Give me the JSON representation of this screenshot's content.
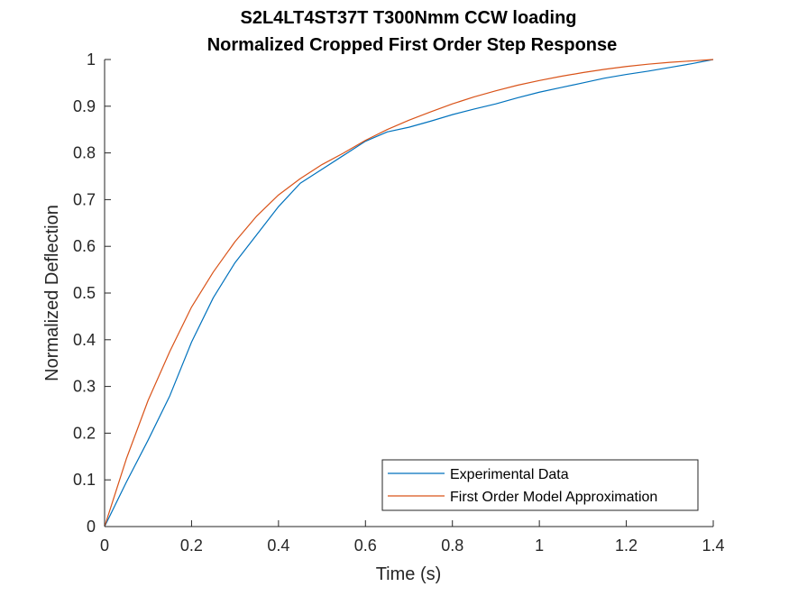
{
  "chart_data": {
    "type": "line",
    "title": [
      "S2L4LT4ST37T T300Nmm CCW loading",
      "Normalized Cropped First Order Step Response"
    ],
    "xlabel": "Time (s)",
    "ylabel": "Normalized Deflection",
    "xlim": [
      0,
      1.4
    ],
    "ylim": [
      0,
      1
    ],
    "xticks": [
      0,
      0.2,
      0.4,
      0.6,
      0.8,
      1,
      1.2,
      1.4
    ],
    "xtick_labels": [
      "0",
      "0.2",
      "0.4",
      "0.6",
      "0.8",
      "1",
      "1.2",
      "1.4"
    ],
    "yticks": [
      0,
      0.1,
      0.2,
      0.3,
      0.4,
      0.5,
      0.6,
      0.7,
      0.8,
      0.9,
      1
    ],
    "ytick_labels": [
      "0",
      "0.1",
      "0.2",
      "0.3",
      "0.4",
      "0.5",
      "0.6",
      "0.7",
      "0.8",
      "0.9",
      "1"
    ],
    "grid": false,
    "legend_position": "bottom-right",
    "series": [
      {
        "name": "Experimental Data",
        "color": "#0072bd",
        "x": [
          0,
          0.05,
          0.1,
          0.15,
          0.2,
          0.25,
          0.3,
          0.35,
          0.4,
          0.45,
          0.5,
          0.55,
          0.6,
          0.65,
          0.7,
          0.75,
          0.8,
          0.85,
          0.9,
          0.95,
          1.0,
          1.05,
          1.1,
          1.15,
          1.2,
          1.25,
          1.3,
          1.35,
          1.4
        ],
        "y": [
          0,
          0.095,
          0.185,
          0.28,
          0.395,
          0.49,
          0.565,
          0.625,
          0.685,
          0.735,
          0.765,
          0.795,
          0.825,
          0.845,
          0.855,
          0.868,
          0.882,
          0.894,
          0.905,
          0.918,
          0.93,
          0.94,
          0.95,
          0.96,
          0.968,
          0.975,
          0.983,
          0.991,
          1.0
        ]
      },
      {
        "name": "First Order Model Approximation",
        "color": "#d95319",
        "x": [
          0,
          0.05,
          0.1,
          0.15,
          0.2,
          0.25,
          0.3,
          0.35,
          0.4,
          0.45,
          0.5,
          0.55,
          0.6,
          0.65,
          0.7,
          0.75,
          0.8,
          0.85,
          0.9,
          0.95,
          1.0,
          1.05,
          1.1,
          1.15,
          1.2,
          1.25,
          1.3,
          1.35,
          1.4
        ],
        "y": [
          0,
          0.145,
          0.27,
          0.375,
          0.47,
          0.545,
          0.61,
          0.665,
          0.71,
          0.745,
          0.775,
          0.8,
          0.827,
          0.85,
          0.87,
          0.888,
          0.905,
          0.92,
          0.933,
          0.945,
          0.955,
          0.964,
          0.972,
          0.979,
          0.985,
          0.99,
          0.994,
          0.997,
          1.0
        ]
      }
    ]
  }
}
